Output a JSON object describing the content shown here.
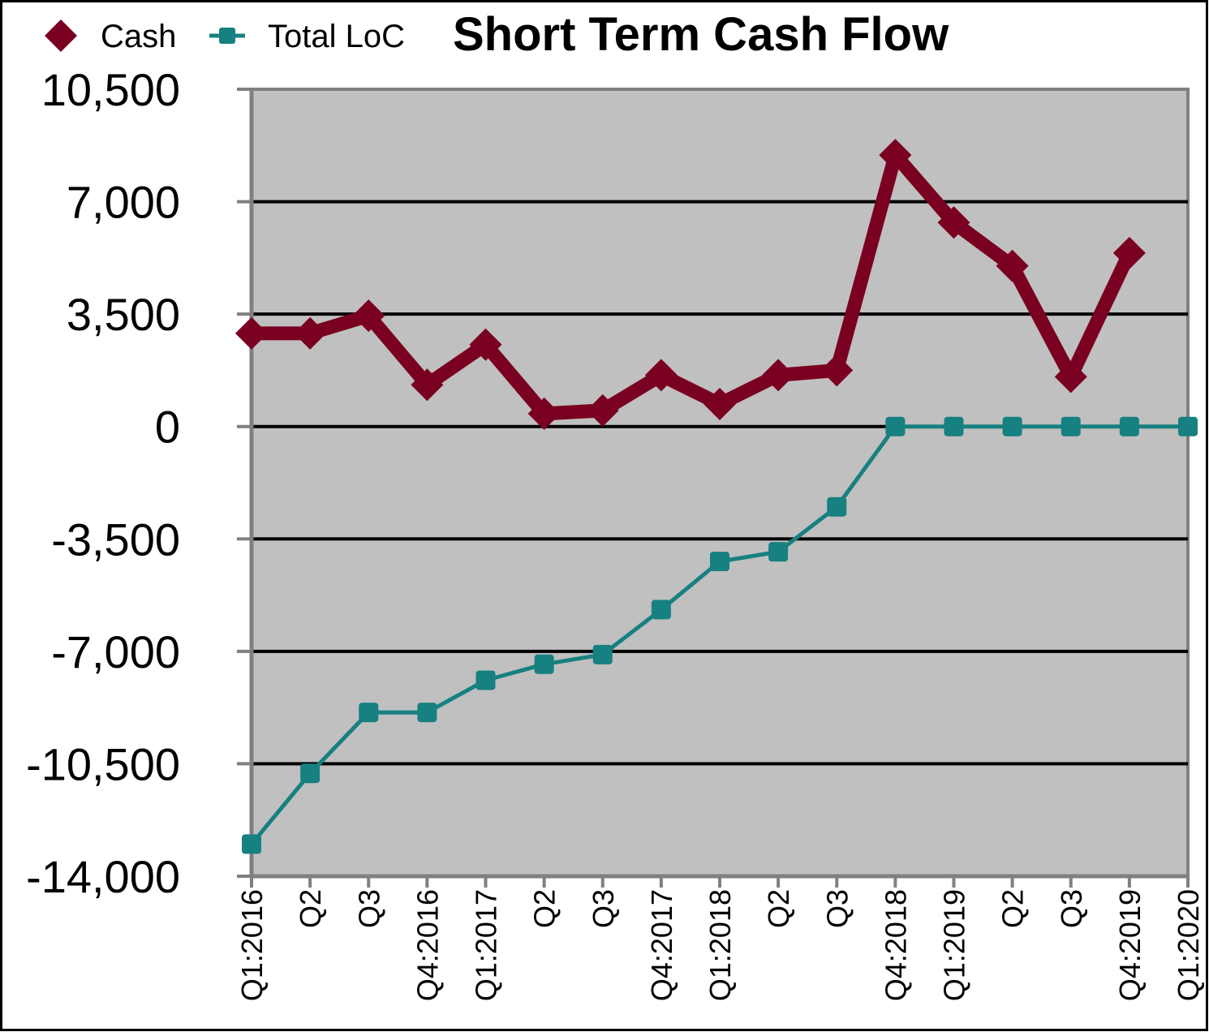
{
  "chart_data": {
    "type": "line",
    "title": "Short Term Cash Flow",
    "xlabel": "",
    "ylabel": "",
    "categories": [
      "Q1:2016",
      "Q2",
      "Q3",
      "Q4:2016",
      "Q1:2017",
      "Q2",
      "Q3",
      "Q4:2017",
      "Q1:2018",
      "Q2",
      "Q3",
      "Q4:2018",
      "Q1:2019",
      "Q2",
      "Q3",
      "Q4:2019",
      "Q1:2020"
    ],
    "ylim": [
      -14000,
      10500
    ],
    "yticks": [
      "10,500",
      "7,000",
      "3,500",
      "0",
      "-3,500",
      "-7,000",
      "-10,500",
      "-14,000"
    ],
    "ytick_values": [
      10500,
      7000,
      3500,
      0,
      -3500,
      -7000,
      -10500,
      -14000
    ],
    "grid": true,
    "legend_position": "top-left",
    "series": [
      {
        "name": "Cash",
        "color": "#7a0021",
        "marker": "diamond",
        "values": [
          2900,
          2900,
          3450,
          1300,
          2550,
          400,
          500,
          1600,
          700,
          1600,
          1750,
          8450,
          6350,
          5000,
          1550,
          5400,
          null
        ]
      },
      {
        "name": "Total LoC",
        "color": "#178080",
        "marker": "square",
        "values": [
          -13000,
          -10800,
          -8900,
          -8900,
          -7900,
          -7400,
          -7100,
          -5700,
          -4200,
          -3900,
          -2500,
          0,
          0,
          0,
          0,
          0,
          0
        ]
      }
    ]
  },
  "colors": {
    "plot_background": "#c0c0c0",
    "plot_border": "#808080",
    "gridline": "#000000"
  }
}
